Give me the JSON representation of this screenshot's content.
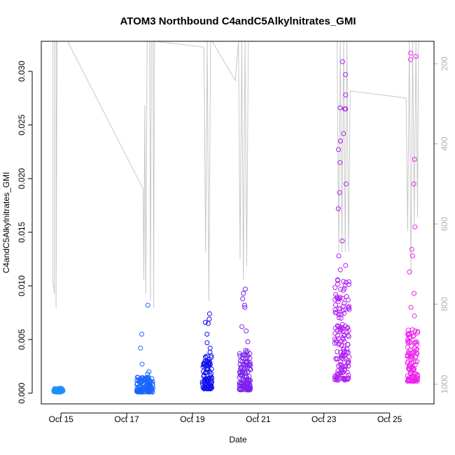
{
  "chart_data": {
    "type": "scatter",
    "title": "ATOM3 Northbound C4andC5Alkylnitrates_GMI",
    "xlabel": "Date",
    "ylabel": "C4andC5Alkylnitrates_GMI",
    "ylim": [
      -0.001,
      0.0328
    ],
    "y_ticks": [
      "0.000",
      "0.005",
      "0.010",
      "0.015",
      "0.020",
      "0.025",
      "0.030"
    ],
    "x_ticks": [
      "Oct 15",
      "Oct 17",
      "Oct 19",
      "Oct 21",
      "Oct 23",
      "Oct 25"
    ],
    "y2_ticks": [
      "200",
      "400",
      "600",
      "800",
      "1000"
    ],
    "y2_reversed": true,
    "y2_color": "#b0b0b0",
    "grid": false,
    "marker": "open-circle",
    "series": [
      {
        "color": "#1e90ff",
        "clusters": [
          {
            "x": 14.92,
            "w": 0.28,
            "lo": 0.0001,
            "hi": 0.00045,
            "n": 80,
            "extra": []
          }
        ]
      },
      {
        "color": "#1a66ff",
        "clusters": [
          {
            "x": 17.55,
            "w": 0.5,
            "lo": 0.0001,
            "hi": 0.0015,
            "n": 120,
            "extra": [
              0.0082,
              0.0055,
              0.0042,
              0.0027,
              0.002,
              0.0018
            ]
          }
        ]
      },
      {
        "color": "#1010ee",
        "clusters": [
          {
            "x": 19.45,
            "w": 0.3,
            "lo": 0.0004,
            "hi": 0.0035,
            "n": 90,
            "extra": [
              0.0074,
              0.0069,
              0.0066,
              0.0065,
              0.0055,
              0.0047,
              0.0042,
              0.0038
            ]
          }
        ]
      },
      {
        "color": "#7a22ee",
        "clusters": [
          {
            "x": 20.6,
            "w": 0.35,
            "lo": 0.0003,
            "hi": 0.0042,
            "n": 110,
            "extra": [
              0.0097,
              0.0093,
              0.0088,
              0.0082,
              0.008,
              0.0062,
              0.0058,
              0.0048
            ]
          }
        ]
      },
      {
        "color": "#b020f0",
        "clusters": [
          {
            "x": 23.55,
            "w": 0.45,
            "lo": 0.0012,
            "hi": 0.011,
            "n": 150,
            "extra": [
              0.0309,
              0.0297,
              0.0278,
              0.0266,
              0.0265,
              0.0265,
              0.0242,
              0.0235,
              0.0227,
              0.0215,
              0.0195,
              0.0187,
              0.0172,
              0.0142,
              0.0128,
              0.0115,
              0.0119,
              0.0019,
              0.0021
            ]
          }
        ]
      },
      {
        "color": "#ee22ee",
        "clusters": [
          {
            "x": 25.7,
            "w": 0.32,
            "lo": 0.0011,
            "hi": 0.006,
            "n": 110,
            "extra": [
              0.0317,
              0.0314,
              0.0311,
              0.0218,
              0.0195,
              0.0155,
              0.0134,
              0.0128,
              0.0113,
              0.0093,
              0.008,
              0.0072
            ]
          }
        ]
      }
    ]
  }
}
